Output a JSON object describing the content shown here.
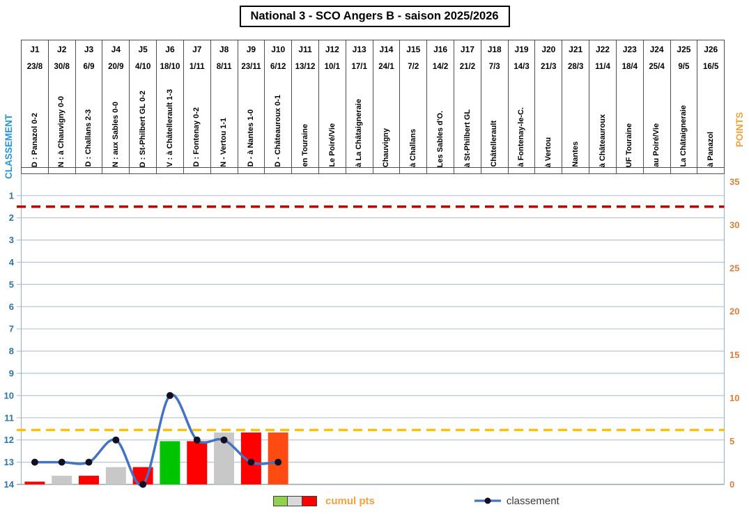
{
  "title": "National 3 - SCO Angers B - saison 2025/2026",
  "matchdays": [
    {
      "j": "J1",
      "date": "23/8",
      "label": "D : Panazol 0-2"
    },
    {
      "j": "J2",
      "date": "30/8",
      "label": "N : à Chauvigny 0-0"
    },
    {
      "j": "J3",
      "date": "6/9",
      "label": "D : Challans 2-3"
    },
    {
      "j": "J4",
      "date": "20/9",
      "label": "N : aux Sables 0-0"
    },
    {
      "j": "J5",
      "date": "4/10",
      "label": "D : St-Philbert GL 0-2"
    },
    {
      "j": "J6",
      "date": "18/10",
      "label": "V : à Châtellerault 1-3"
    },
    {
      "j": "J7",
      "date": "1/11",
      "label": "D : Fontenay 0-2"
    },
    {
      "j": "J8",
      "date": "8/11",
      "label": "N - Vertou 1-1"
    },
    {
      "j": "J9",
      "date": "23/11",
      "label": "D - à Nantes 1-0"
    },
    {
      "j": "J10",
      "date": "6/12",
      "label": "D - Châteauroux 0-1"
    },
    {
      "j": "J11",
      "date": "13/12",
      "label": "en Touraine"
    },
    {
      "j": "J12",
      "date": "10/1",
      "label": "Le Poiré/Vie"
    },
    {
      "j": "J13",
      "date": "17/1",
      "label": "à La Châtaigneraie"
    },
    {
      "j": "J14",
      "date": "24/1",
      "label": "Chauvigny"
    },
    {
      "j": "J15",
      "date": "7/2",
      "label": "à Challans"
    },
    {
      "j": "J16",
      "date": "14/2",
      "label": "Les Sables d'O."
    },
    {
      "j": "J17",
      "date": "21/2",
      "label": "à St-Philbert GL"
    },
    {
      "j": "J18",
      "date": "7/3",
      "label": "Châtellerault"
    },
    {
      "j": "J19",
      "date": "14/3",
      "label": "à Fontenay-le-C."
    },
    {
      "j": "J20",
      "date": "21/3",
      "label": "à Vertou"
    },
    {
      "j": "J21",
      "date": "28/3",
      "label": "Nantes"
    },
    {
      "j": "J22",
      "date": "11/4",
      "label": "à Châteauroux"
    },
    {
      "j": "J23",
      "date": "18/4",
      "label": "UF Touraine"
    },
    {
      "j": "J24",
      "date": "25/4",
      "label": "au Poiré/Vie"
    },
    {
      "j": "J25",
      "date": "9/5",
      "label": "La Châtaigneraie"
    },
    {
      "j": "J26",
      "date": "16/5",
      "label": "à Panazol"
    }
  ],
  "axes": {
    "left": {
      "title": "CLASSEMENT",
      "title_color": "#2796D6",
      "tick_color": "#2E74A8",
      "ticks": [
        1,
        2,
        3,
        4,
        5,
        6,
        7,
        8,
        9,
        10,
        11,
        12,
        13,
        14
      ]
    },
    "right": {
      "title": "POINTS",
      "title_color": "#F2A13C",
      "tick_color": "#DD7E3B",
      "ticks": [
        0,
        5,
        10,
        15,
        20,
        25,
        30,
        35
      ]
    }
  },
  "chart_data": {
    "type": "combo",
    "categories": [
      "J1",
      "J2",
      "J3",
      "J4",
      "J5",
      "J6",
      "J7",
      "J8",
      "J9",
      "J10",
      "J11",
      "J12",
      "J13",
      "J14",
      "J15",
      "J16",
      "J17",
      "J18",
      "J19",
      "J20",
      "J21",
      "J22",
      "J23",
      "J24",
      "J25",
      "J26"
    ],
    "series": [
      {
        "name": "cumul pts",
        "type": "bar",
        "axis": "points",
        "values": [
          0,
          1,
          1,
          2,
          2,
          5,
          5,
          6,
          6,
          6
        ],
        "bar_colors": [
          "red",
          "gray",
          "red",
          "gray",
          "red",
          "green",
          "red",
          "gray",
          "red",
          "orange"
        ]
      },
      {
        "name": "classement",
        "type": "line",
        "axis": "classement",
        "values": [
          13,
          13,
          13,
          12,
          14,
          10,
          12,
          12,
          13,
          13
        ]
      }
    ],
    "left_axis": {
      "label": "CLASSEMENT",
      "range": [
        1,
        14
      ],
      "reversed": true,
      "grid": true
    },
    "right_axis": {
      "label": "POINTS",
      "range": [
        0,
        35
      ],
      "tick_step": 5
    },
    "reference_lines": [
      {
        "name": "promotion-line",
        "axis": "classement",
        "value": 1.5,
        "color": "#C00000",
        "style": "dashed"
      },
      {
        "name": "relegation-line",
        "axis": "classement",
        "value": 11.55,
        "color": "#FFC000",
        "style": "dashed"
      }
    ],
    "palette": {
      "red": "#FE0000",
      "gray": "#C8C8C8",
      "green": "#00C400",
      "orange": "#FF4B11",
      "line": "#4472C4",
      "dot": "#101022",
      "grid": "#AEC6D8",
      "axis_line": "#9FB4C6"
    }
  },
  "legend": {
    "cumul_label": "cumul pts",
    "cumul_color": "#F2A13C",
    "classement_label": "classement",
    "swatches": [
      "#92D050",
      "#D9D9D9",
      "#FF0000"
    ]
  }
}
